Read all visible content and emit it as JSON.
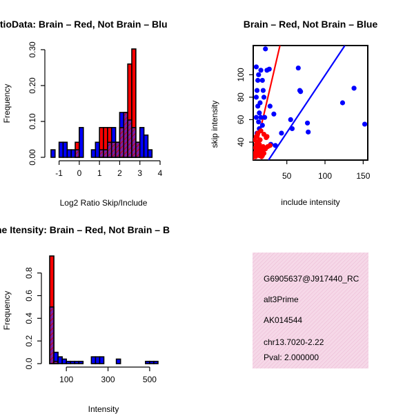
{
  "chart_data": [
    {
      "type": "bar",
      "kind": "histogram",
      "title": "RatioData: Brain – Red, Not Brain – Blu",
      "xlabel": "Log2 Ratio Skip/Include",
      "ylabel": "Frequency",
      "xlim": [
        -1.5,
        4
      ],
      "ylim": [
        0,
        0.3
      ],
      "xticks": [
        "-1",
        "0",
        "1",
        "2",
        "3",
        "4"
      ],
      "yticks": [
        "0.00",
        "0.10",
        "0.20",
        "0.30"
      ],
      "bin_width": 0.2,
      "series": [
        {
          "name": "Brain",
          "color": "#ff0000",
          "bins": [
            [
              -0.2,
              0.042
            ],
            [
              1.0,
              0.083
            ],
            [
              1.2,
              0.083
            ],
            [
              1.4,
              0.083
            ],
            [
              1.6,
              0.042
            ],
            [
              1.8,
              0.042
            ],
            [
              2.0,
              0.083
            ],
            [
              2.2,
              0.125
            ],
            [
              2.4,
              0.26
            ],
            [
              2.6,
              0.302
            ],
            [
              2.8,
              0.042
            ]
          ]
        },
        {
          "name": "Not Brain",
          "color": "#0000ff",
          "bins": [
            [
              -1.4,
              0.021
            ],
            [
              -1.0,
              0.042
            ],
            [
              -0.8,
              0.042
            ],
            [
              -0.6,
              0.021
            ],
            [
              -0.4,
              0.021
            ],
            [
              -0.2,
              0.021
            ],
            [
              0.0,
              0.083
            ],
            [
              0.6,
              0.021
            ],
            [
              0.8,
              0.042
            ],
            [
              1.0,
              0.021
            ],
            [
              1.2,
              0.021
            ],
            [
              1.4,
              0.042
            ],
            [
              1.6,
              0.083
            ],
            [
              1.8,
              0.042
            ],
            [
              2.0,
              0.125
            ],
            [
              2.2,
              0.125
            ],
            [
              2.4,
              0.104
            ],
            [
              2.6,
              0.083
            ],
            [
              2.8,
              0.042
            ],
            [
              3.0,
              0.083
            ],
            [
              3.2,
              0.062
            ],
            [
              3.4,
              0.021
            ]
          ]
        }
      ]
    },
    {
      "type": "scatter",
      "title": "Brain – Red, Not Brain – Blue",
      "xlabel": "include intensity",
      "ylabel": "skip intensity",
      "xlim": [
        6,
        156
      ],
      "ylim": [
        24,
        126
      ],
      "xticks": [
        "50",
        "100",
        "150"
      ],
      "yticks": [
        "40",
        "60",
        "80",
        "100"
      ],
      "series": [
        {
          "name": "Brain",
          "color": "#ff0000",
          "points": [
            [
              7,
              28
            ],
            [
              8,
              30
            ],
            [
              9,
              35
            ],
            [
              10,
              38
            ],
            [
              11,
              40
            ],
            [
              12,
              29
            ],
            [
              13,
              32
            ],
            [
              14,
              28
            ],
            [
              15,
              31
            ],
            [
              16,
              35
            ],
            [
              17,
              27
            ],
            [
              18,
              33
            ],
            [
              19,
              36
            ],
            [
              20,
              30
            ],
            [
              22,
              34
            ],
            [
              24,
              45
            ],
            [
              10,
              45
            ],
            [
              12,
              48
            ],
            [
              16,
              50
            ],
            [
              20,
              47
            ],
            [
              8,
              42
            ],
            [
              12,
              36
            ],
            [
              14,
              38
            ],
            [
              18,
              28
            ],
            [
              25,
              36
            ],
            [
              28,
              37
            ],
            [
              10,
              32
            ],
            [
              9,
              27
            ],
            [
              15,
              42
            ],
            [
              23,
              44
            ]
          ]
        },
        {
          "name": "Not Brain",
          "color": "#0000ff",
          "points": [
            [
              22,
              123
            ],
            [
              10,
              107
            ],
            [
              16,
              104
            ],
            [
              24,
              104
            ],
            [
              27,
              105
            ],
            [
              65,
              106
            ],
            [
              13,
              100
            ],
            [
              12,
              95
            ],
            [
              18,
              95
            ],
            [
              11,
              86
            ],
            [
              19,
              86
            ],
            [
              10,
              80
            ],
            [
              20,
              80
            ],
            [
              67,
              86
            ],
            [
              68,
              85
            ],
            [
              138,
              88
            ],
            [
              15,
              75
            ],
            [
              12,
              72
            ],
            [
              14,
              66
            ],
            [
              10,
              62
            ],
            [
              16,
              62
            ],
            [
              21,
              62
            ],
            [
              13,
              58
            ],
            [
              18,
              55
            ],
            [
              28,
              72
            ],
            [
              33,
              65
            ],
            [
              55,
              60
            ],
            [
              14,
              52
            ],
            [
              11,
              48
            ],
            [
              77,
              57
            ],
            [
              123,
              75
            ],
            [
              152,
              56
            ],
            [
              43,
              48
            ],
            [
              57,
              52
            ],
            [
              78,
              49
            ],
            [
              29,
              38
            ],
            [
              35,
              37
            ]
          ]
        }
      ],
      "fit_lines": [
        {
          "name": "Brain fit",
          "color": "#ff0000",
          "points": [
            [
              6,
              24
            ],
            [
              41,
              126
            ]
          ]
        },
        {
          "name": "Not Brain fit",
          "color": "#0000ff",
          "points": [
            [
              26,
              24
            ],
            [
              126,
              126
            ]
          ]
        }
      ]
    },
    {
      "type": "bar",
      "kind": "histogram",
      "title": "Intensity: Brain – Red, Not Brain – B",
      "title_visible": "ne Itensity: Brain – Red, Not Brain – B",
      "xlabel": "Intensity",
      "ylabel": "Frequency",
      "xlim": [
        0,
        550
      ],
      "ylim": [
        0,
        0.95
      ],
      "xticks": [
        "100",
        "300",
        "500"
      ],
      "yticks": [
        "0.0",
        "0.2",
        "0.4",
        "0.6",
        "0.8"
      ],
      "bin_width": 20,
      "series": [
        {
          "name": "Brain",
          "color": "#ff0000",
          "bins": [
            [
              20,
              0.95
            ],
            [
              40,
              0.02
            ]
          ]
        },
        {
          "name": "Not Brain",
          "color": "#0000ff",
          "bins": [
            [
              20,
              0.5
            ],
            [
              40,
              0.1
            ],
            [
              60,
              0.06
            ],
            [
              80,
              0.04
            ],
            [
              100,
              0.02
            ],
            [
              120,
              0.02
            ],
            [
              140,
              0.02
            ],
            [
              160,
              0.02
            ],
            [
              220,
              0.06
            ],
            [
              240,
              0.06
            ],
            [
              260,
              0.06
            ],
            [
              340,
              0.04
            ],
            [
              480,
              0.02
            ],
            [
              500,
              0.02
            ],
            [
              520,
              0.02
            ]
          ]
        }
      ]
    }
  ],
  "info_panel": {
    "color": "#f4d4e6",
    "lines": [
      "G6905637@J917440_RC",
      "alt3Prime",
      "AK014544",
      "chr13.7020-2.22"
    ],
    "pval": "Pval: 2.000000",
    "pval_color": "#8b0000"
  }
}
